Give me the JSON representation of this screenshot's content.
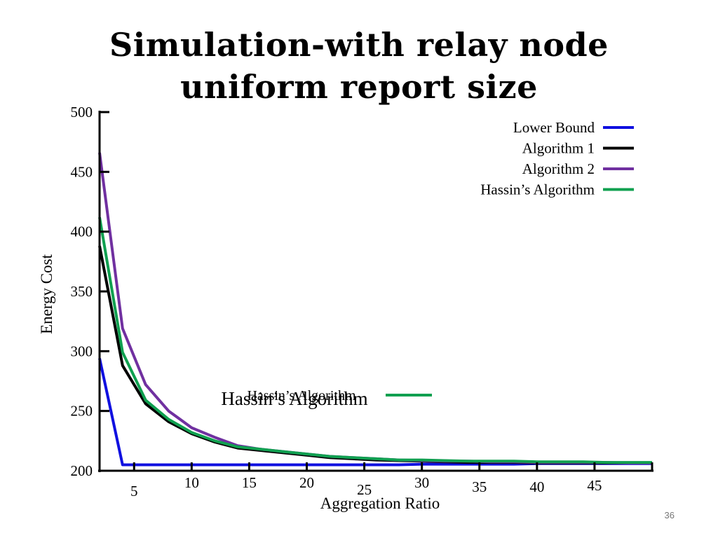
{
  "slide": {
    "title_line1": "Simulation-with relay node",
    "title_line2": "uniform report size",
    "page_number": "36"
  },
  "chart_data": {
    "type": "line",
    "title": "Simulation-with relay node uniform report size",
    "xlabel": "Aggregation Ratio",
    "ylabel": "Energy Cost",
    "xlim": [
      2,
      50
    ],
    "ylim": [
      200,
      500
    ],
    "x_ticks": [
      5,
      10,
      15,
      20,
      25,
      30,
      35,
      40,
      45
    ],
    "y_ticks": [
      200,
      250,
      300,
      350,
      400,
      450,
      500
    ],
    "grid": false,
    "legend_position": "top-right",
    "x": [
      2,
      4,
      6,
      8,
      10,
      12,
      14,
      16,
      18,
      20,
      22,
      24,
      26,
      28,
      30,
      32,
      34,
      36,
      38,
      40,
      42,
      44,
      46,
      48,
      50
    ],
    "series": [
      {
        "name": "Lower Bound",
        "color": "#1010e0",
        "values": [
          294,
          205,
          205,
          205,
          205,
          205,
          205,
          205,
          205,
          205,
          205,
          205,
          205,
          205,
          205.5,
          205.5,
          205.5,
          205.5,
          205.5,
          206,
          206,
          206,
          206,
          206,
          206
        ]
      },
      {
        "name": "Algorithm 1",
        "color": "#000000",
        "values": [
          388,
          288,
          256,
          241,
          231,
          224,
          219,
          217,
          215,
          213,
          211,
          210,
          209,
          208.5,
          208,
          207.5,
          207,
          207,
          207,
          206.5,
          206.5,
          206.5,
          206.5,
          206.5,
          206.5
        ]
      },
      {
        "name": "Algorithm 2",
        "color": "#7030a0",
        "values": [
          466,
          319,
          272,
          250,
          236,
          228,
          221,
          218,
          216,
          214,
          212,
          211,
          210,
          209,
          208.5,
          208,
          208,
          207.5,
          207.5,
          207,
          207,
          207,
          207,
          206.5,
          206.5
        ]
      },
      {
        "name": "Hassin’s Algorithm",
        "color": "#10a050",
        "values": [
          412,
          299,
          259,
          243,
          232,
          225,
          220,
          218,
          216,
          214,
          212,
          211,
          210,
          209,
          209,
          208.5,
          208,
          208,
          208,
          207.5,
          207.5,
          207.5,
          207,
          207,
          207
        ]
      }
    ],
    "annotations": [
      {
        "text": "Hassin’s Algorithm",
        "color": "#10a050"
      },
      {
        "text": "Hassin’s Algorithm",
        "color": "#10a050"
      }
    ]
  }
}
